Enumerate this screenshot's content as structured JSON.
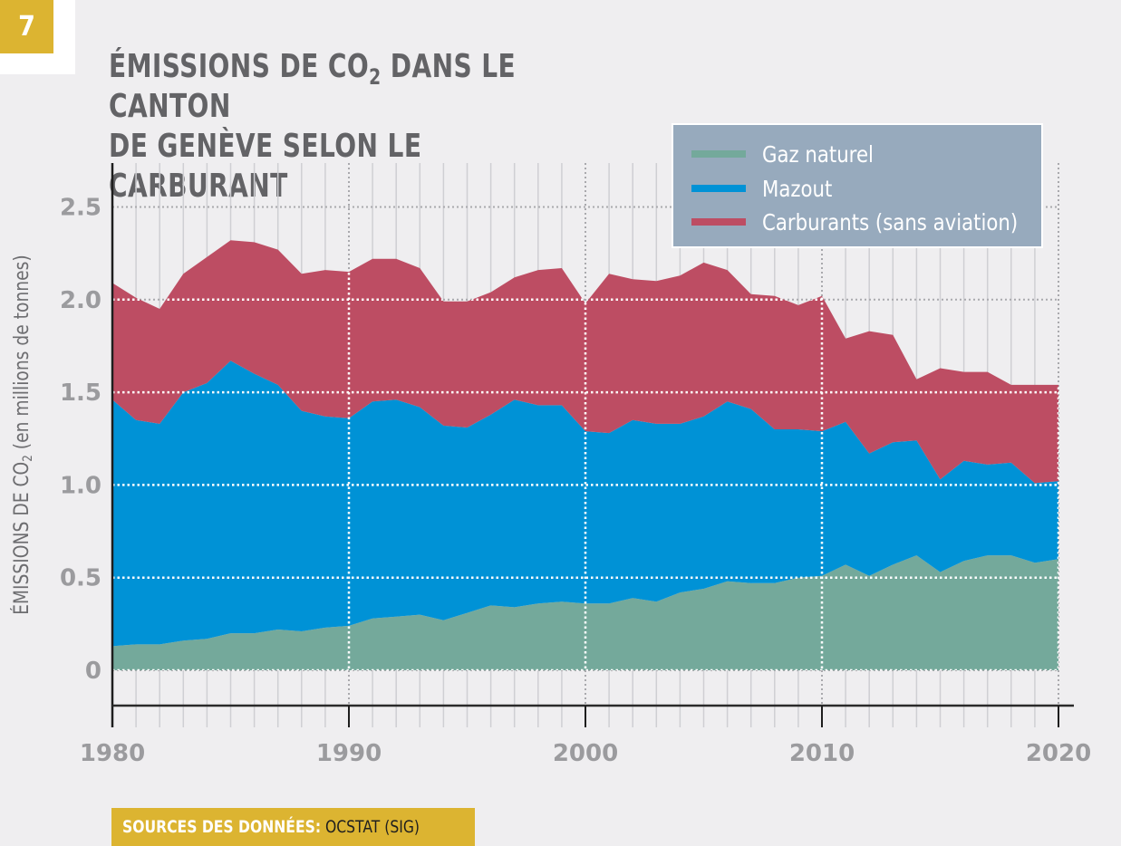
{
  "badge": {
    "number": "7"
  },
  "title": {
    "line1_prefix": "ÉMISSIONS DE CO",
    "line1_sub": "2",
    "line1_suffix": " DANS LE CANTON",
    "line2": "DE GENÈVE SELON LE CARBURANT"
  },
  "source": {
    "label": "SOURCES DES DONNÉES:",
    "value": " OCSTAT (SIG)"
  },
  "colors": {
    "gaz": "#74a99b",
    "mazout": "#0092d6",
    "carburants": "#bd4d63",
    "badge": "#dcb431",
    "legend_bg": "#97aabd"
  },
  "chart_data": {
    "type": "area",
    "stacked": true,
    "title": "ÉMISSIONS DE CO2 DANS LE CANTON DE GENÈVE SELON LE CARBURANT",
    "xlabel": "",
    "ylabel_prefix": "ÉMISSIONS DE CO",
    "ylabel_sub": "2",
    "ylabel_suffix": " (en millions de tonnes)",
    "ylabel": "ÉMISSIONS DE CO2 (en millions de tonnes)",
    "ylim": [
      -0.2,
      2.7
    ],
    "xlim": [
      1980,
      2020
    ],
    "yticks": [
      0,
      0.5,
      1.0,
      1.5,
      2.0,
      2.5
    ],
    "ytick_labels": [
      "0",
      "0.5",
      "1.0",
      "1.5",
      "2.0",
      "2.5"
    ],
    "xticks": [
      1980,
      1990,
      2000,
      2010,
      2020
    ],
    "xtick_labels": [
      "1980",
      "1990",
      "2000",
      "2010",
      "2020"
    ],
    "grid": true,
    "legend_position": "top-right",
    "x": [
      1980,
      1981,
      1982,
      1983,
      1984,
      1985,
      1986,
      1987,
      1988,
      1989,
      1990,
      1991,
      1992,
      1993,
      1994,
      1995,
      1996,
      1997,
      1998,
      1999,
      2000,
      2001,
      2002,
      2003,
      2004,
      2005,
      2006,
      2007,
      2008,
      2009,
      2010,
      2011,
      2012,
      2013,
      2014,
      2015,
      2016,
      2017,
      2018,
      2019,
      2020
    ],
    "series": [
      {
        "name": "Gaz naturel",
        "key": "gaz",
        "values": [
          0.13,
          0.14,
          0.14,
          0.16,
          0.17,
          0.2,
          0.2,
          0.22,
          0.21,
          0.23,
          0.24,
          0.28,
          0.29,
          0.3,
          0.27,
          0.31,
          0.35,
          0.34,
          0.36,
          0.37,
          0.36,
          0.36,
          0.39,
          0.37,
          0.42,
          0.44,
          0.48,
          0.47,
          0.47,
          0.5,
          0.51,
          0.57,
          0.51,
          0.57,
          0.62,
          0.53,
          0.59,
          0.62,
          0.62,
          0.58,
          0.6
        ]
      },
      {
        "name": "Mazout",
        "key": "mazout",
        "values": [
          1.33,
          1.21,
          1.19,
          1.34,
          1.38,
          1.47,
          1.4,
          1.32,
          1.19,
          1.14,
          1.12,
          1.17,
          1.17,
          1.12,
          1.05,
          1.0,
          1.03,
          1.12,
          1.07,
          1.06,
          0.93,
          0.92,
          0.96,
          0.96,
          0.91,
          0.93,
          0.97,
          0.94,
          0.83,
          0.8,
          0.78,
          0.77,
          0.66,
          0.66,
          0.62,
          0.5,
          0.54,
          0.49,
          0.5,
          0.43,
          0.42
        ]
      },
      {
        "name": "Carburants (sans aviation)",
        "key": "carburants",
        "values": [
          0.63,
          0.66,
          0.62,
          0.64,
          0.68,
          0.65,
          0.71,
          0.73,
          0.74,
          0.79,
          0.79,
          0.77,
          0.76,
          0.75,
          0.67,
          0.68,
          0.66,
          0.66,
          0.73,
          0.74,
          0.69,
          0.86,
          0.76,
          0.77,
          0.8,
          0.83,
          0.71,
          0.62,
          0.72,
          0.67,
          0.73,
          0.45,
          0.66,
          0.58,
          0.33,
          0.6,
          0.48,
          0.5,
          0.42,
          0.53,
          0.52
        ]
      }
    ]
  }
}
